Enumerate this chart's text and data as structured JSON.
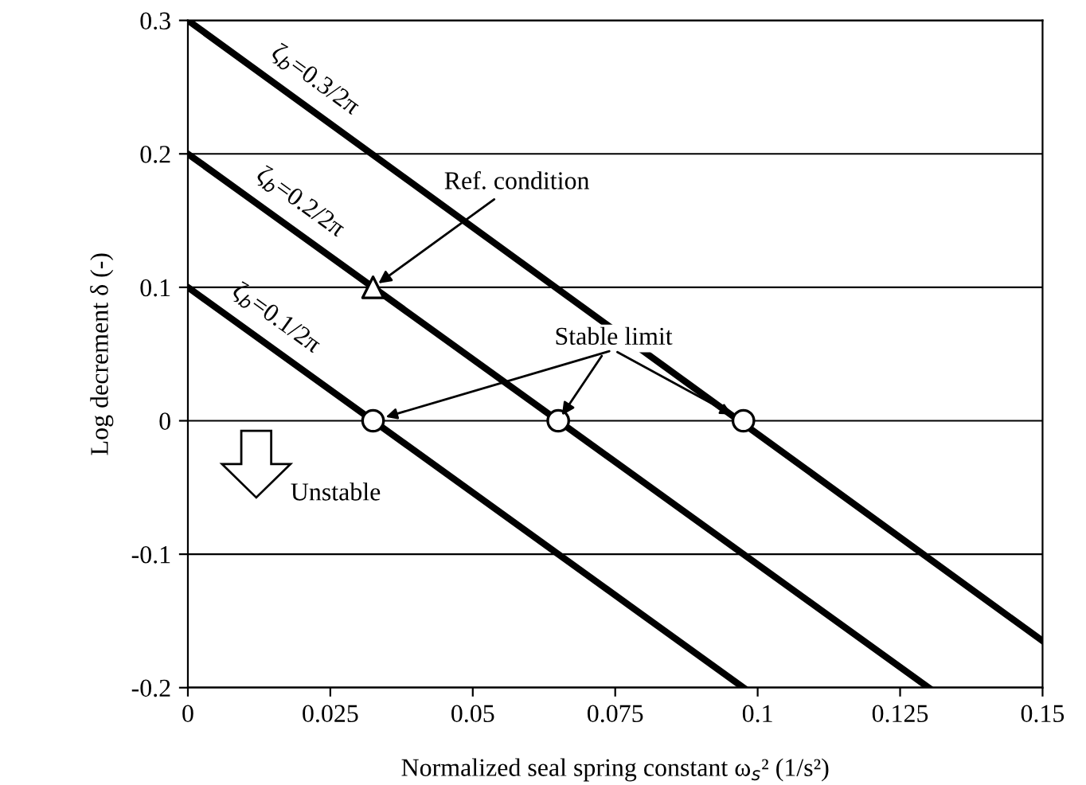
{
  "chart_data": {
    "type": "line",
    "xlabel": "Normalized seal spring constant ω$_{s}$² (1/s²)",
    "ylabel": "Log decrement δ (-)",
    "xlim": [
      0,
      0.15
    ],
    "xticks": [
      0,
      0.025,
      0.05,
      0.075,
      0.1,
      0.125,
      0.15
    ],
    "ylim": [
      -0.2,
      0.3
    ],
    "yticks": [
      -0.2,
      -0.1,
      0,
      0.1,
      0.2,
      0.3
    ],
    "grid": "y",
    "series": [
      {
        "name": "ζ$_{b}$=0.1/2π",
        "color": "#000000",
        "x": [
          0,
          0.0975
        ],
        "values": [
          0.1,
          -0.2
        ]
      },
      {
        "name": "ζ$_{b}$=0.2/2π",
        "color": "#000000",
        "x": [
          0,
          0.13
        ],
        "values": [
          0.2,
          -0.2
        ]
      },
      {
        "name": "ζ$_{b}$=0.3/2π",
        "color": "#000000",
        "x": [
          0,
          0.15
        ],
        "values": [
          0.3,
          -0.165
        ]
      },
      {
        "type": "scatter",
        "marker": "circle",
        "color": "#000000",
        "x": [
          0.0325,
          0.065,
          0.0975
        ],
        "values": [
          0,
          0,
          0
        ]
      },
      {
        "type": "scatter",
        "marker": "triangle",
        "color": "#000000",
        "x": [
          0.0325
        ],
        "values": [
          0.1
        ]
      }
    ],
    "annotations": [
      {
        "text": "Ref. condition",
        "x": 0.0325,
        "y": 0.1
      },
      {
        "text": "Stable limit",
        "x": 0.065,
        "y": 0
      },
      "Unstable"
    ]
  }
}
